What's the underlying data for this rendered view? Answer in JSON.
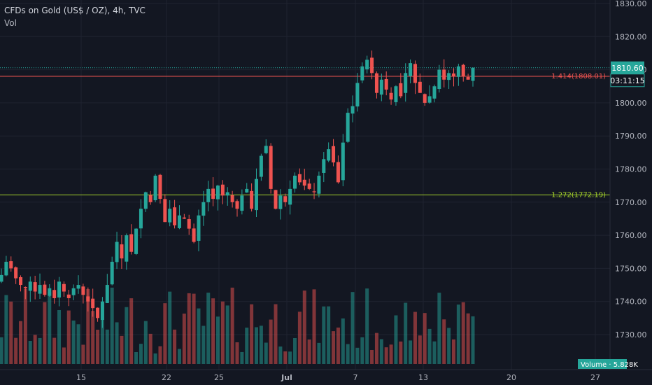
{
  "header": {
    "symbol_line": "CFDs on Gold (US$ / OZ), 4h, TVC",
    "indicator": "Vol"
  },
  "price_axis": {
    "labels": [
      "1830.00",
      "1820.00",
      "1810.00",
      "1800.00",
      "1790.00",
      "1780.00",
      "1770.00",
      "1760.00",
      "1750.00",
      "1740.00",
      "1730.00"
    ],
    "current_price": "1810.60",
    "countdown": "03:11:15"
  },
  "time_axis": {
    "labels": [
      "15",
      "22",
      "25",
      "Jul",
      "7",
      "13",
      "20",
      "27"
    ]
  },
  "levels": [
    {
      "label": "1.414(1808.01)",
      "value": 1808.01,
      "color": "#ef5350"
    },
    {
      "label": "1.272(1772.19)",
      "value": 1772.19,
      "color": "#a5d22a"
    }
  ],
  "volume_badge": "Volume · 5.828K",
  "colors": {
    "up": "#26a69a",
    "down": "#ef5350",
    "background": "#131722",
    "grid": "#1f2330",
    "text": "#b2b5be",
    "current_price_line": "#26a69a"
  },
  "chart_data": {
    "type": "candlestick",
    "ylim": [
      1723,
      1830
    ],
    "x_ticks": [
      "15",
      "22",
      "25",
      "Jul",
      "7",
      "13",
      "20",
      "27"
    ],
    "close_path": [
      1748,
      1752,
      1750,
      1747,
      1745,
      1744,
      1746,
      1743,
      1745,
      1742,
      1744,
      1741,
      1746,
      1743,
      1741,
      1744,
      1745,
      1742,
      1740,
      1738,
      1735,
      1740,
      1745,
      1752,
      1758,
      1753,
      1760,
      1755,
      1762,
      1768,
      1773,
      1770,
      1778,
      1771,
      1764,
      1768,
      1763,
      1766,
      1765,
      1762,
      1758,
      1766,
      1770,
      1774,
      1771,
      1775,
      1772,
      1773,
      1770,
      1768,
      1772,
      1774,
      1768,
      1777,
      1784,
      1787,
      1774,
      1768,
      1772,
      1770,
      1774,
      1778,
      1776,
      1775,
      1774,
      1773,
      1778,
      1783,
      1786,
      1782,
      1776,
      1788,
      1797,
      1799,
      1806,
      1811,
      1813,
      1809,
      1803,
      1807,
      1804,
      1801,
      1805,
      1802,
      1809,
      1812,
      1806,
      1803,
      1800,
      1802,
      1805,
      1810,
      1807,
      1809,
      1808,
      1811,
      1808,
      1807,
      1810.6
    ],
    "current_price": 1810.6
  }
}
